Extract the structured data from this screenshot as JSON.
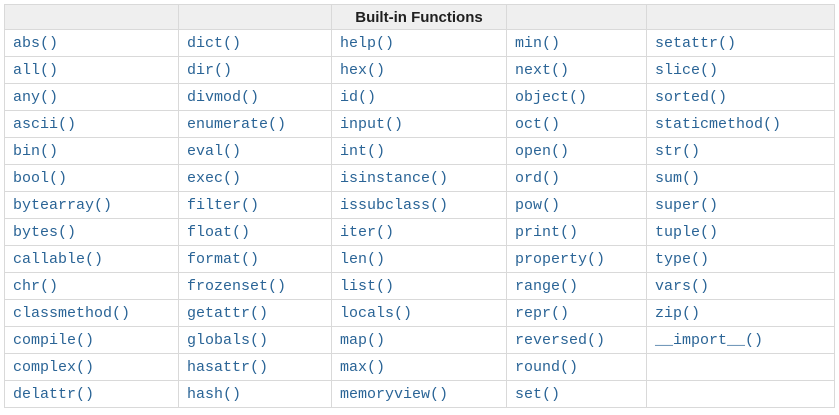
{
  "table": {
    "header": {
      "title": "Built-in Functions"
    },
    "columns": 5,
    "rows": [
      [
        "abs()",
        "dict()",
        "help()",
        "min()",
        "setattr()"
      ],
      [
        "all()",
        "dir()",
        "hex()",
        "next()",
        "slice()"
      ],
      [
        "any()",
        "divmod()",
        "id()",
        "object()",
        "sorted()"
      ],
      [
        "ascii()",
        "enumerate()",
        "input()",
        "oct()",
        "staticmethod()"
      ],
      [
        "bin()",
        "eval()",
        "int()",
        "open()",
        "str()"
      ],
      [
        "bool()",
        "exec()",
        "isinstance()",
        "ord()",
        "sum()"
      ],
      [
        "bytearray()",
        "filter()",
        "issubclass()",
        "pow()",
        "super()"
      ],
      [
        "bytes()",
        "float()",
        "iter()",
        "print()",
        "tuple()"
      ],
      [
        "callable()",
        "format()",
        "len()",
        "property()",
        "type()"
      ],
      [
        "chr()",
        "frozenset()",
        "list()",
        "range()",
        "vars()"
      ],
      [
        "classmethod()",
        "getattr()",
        "locals()",
        "repr()",
        "zip()"
      ],
      [
        "compile()",
        "globals()",
        "map()",
        "reversed()",
        "__import__()"
      ],
      [
        "complex()",
        "hasattr()",
        "max()",
        "round()",
        ""
      ],
      [
        "delattr()",
        "hash()",
        "memoryview()",
        "set()",
        ""
      ]
    ]
  },
  "colors": {
    "link": "#2a6496",
    "border": "#d9d9d9",
    "header_bg": "#efefef",
    "header_text": "#1f1f1f",
    "page_bg": "#ffffff"
  }
}
